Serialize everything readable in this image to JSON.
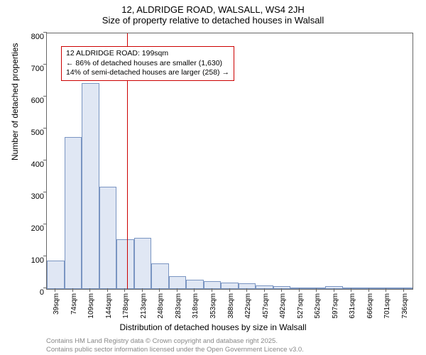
{
  "title_main": "12, ALDRIDGE ROAD, WALSALL, WS4 2JH",
  "title_sub": "Size of property relative to detached houses in Walsall",
  "ylabel": "Number of detached properties",
  "xlabel": "Distribution of detached houses by size in Walsall",
  "chart": {
    "type": "histogram",
    "ylim": [
      0,
      800
    ],
    "ytick_step": 100,
    "yticks": [
      0,
      100,
      200,
      300,
      400,
      500,
      600,
      700,
      800
    ],
    "bar_fill": "#e0e7f4",
    "bar_border": "#7a95c2",
    "marker_color": "#cc0000",
    "background_color": "#ffffff",
    "axis_color": "#666666",
    "text_color": "#000000",
    "label_fontsize": 12,
    "tick_fontsize": 11,
    "categories": [
      "39sqm",
      "74sqm",
      "109sqm",
      "144sqm",
      "178sqm",
      "213sqm",
      "248sqm",
      "283sqm",
      "318sqm",
      "353sqm",
      "388sqm",
      "422sqm",
      "457sqm",
      "492sqm",
      "527sqm",
      "562sqm",
      "597sqm",
      "631sqm",
      "666sqm",
      "701sqm",
      "736sqm"
    ],
    "values": [
      90,
      475,
      645,
      320,
      155,
      160,
      80,
      40,
      30,
      25,
      20,
      18,
      12,
      8,
      5,
      3,
      10,
      2,
      2,
      1,
      1
    ],
    "marker_index": 4.6
  },
  "annotation": {
    "line1": "12 ALDRIDGE ROAD: 199sqm",
    "line2": "← 86% of detached houses are smaller (1,630)",
    "line3": "14% of semi-detached houses are larger (258) →"
  },
  "footer1": "Contains HM Land Registry data © Crown copyright and database right 2025.",
  "footer2": "Contains public sector information licensed under the Open Government Licence v3.0."
}
